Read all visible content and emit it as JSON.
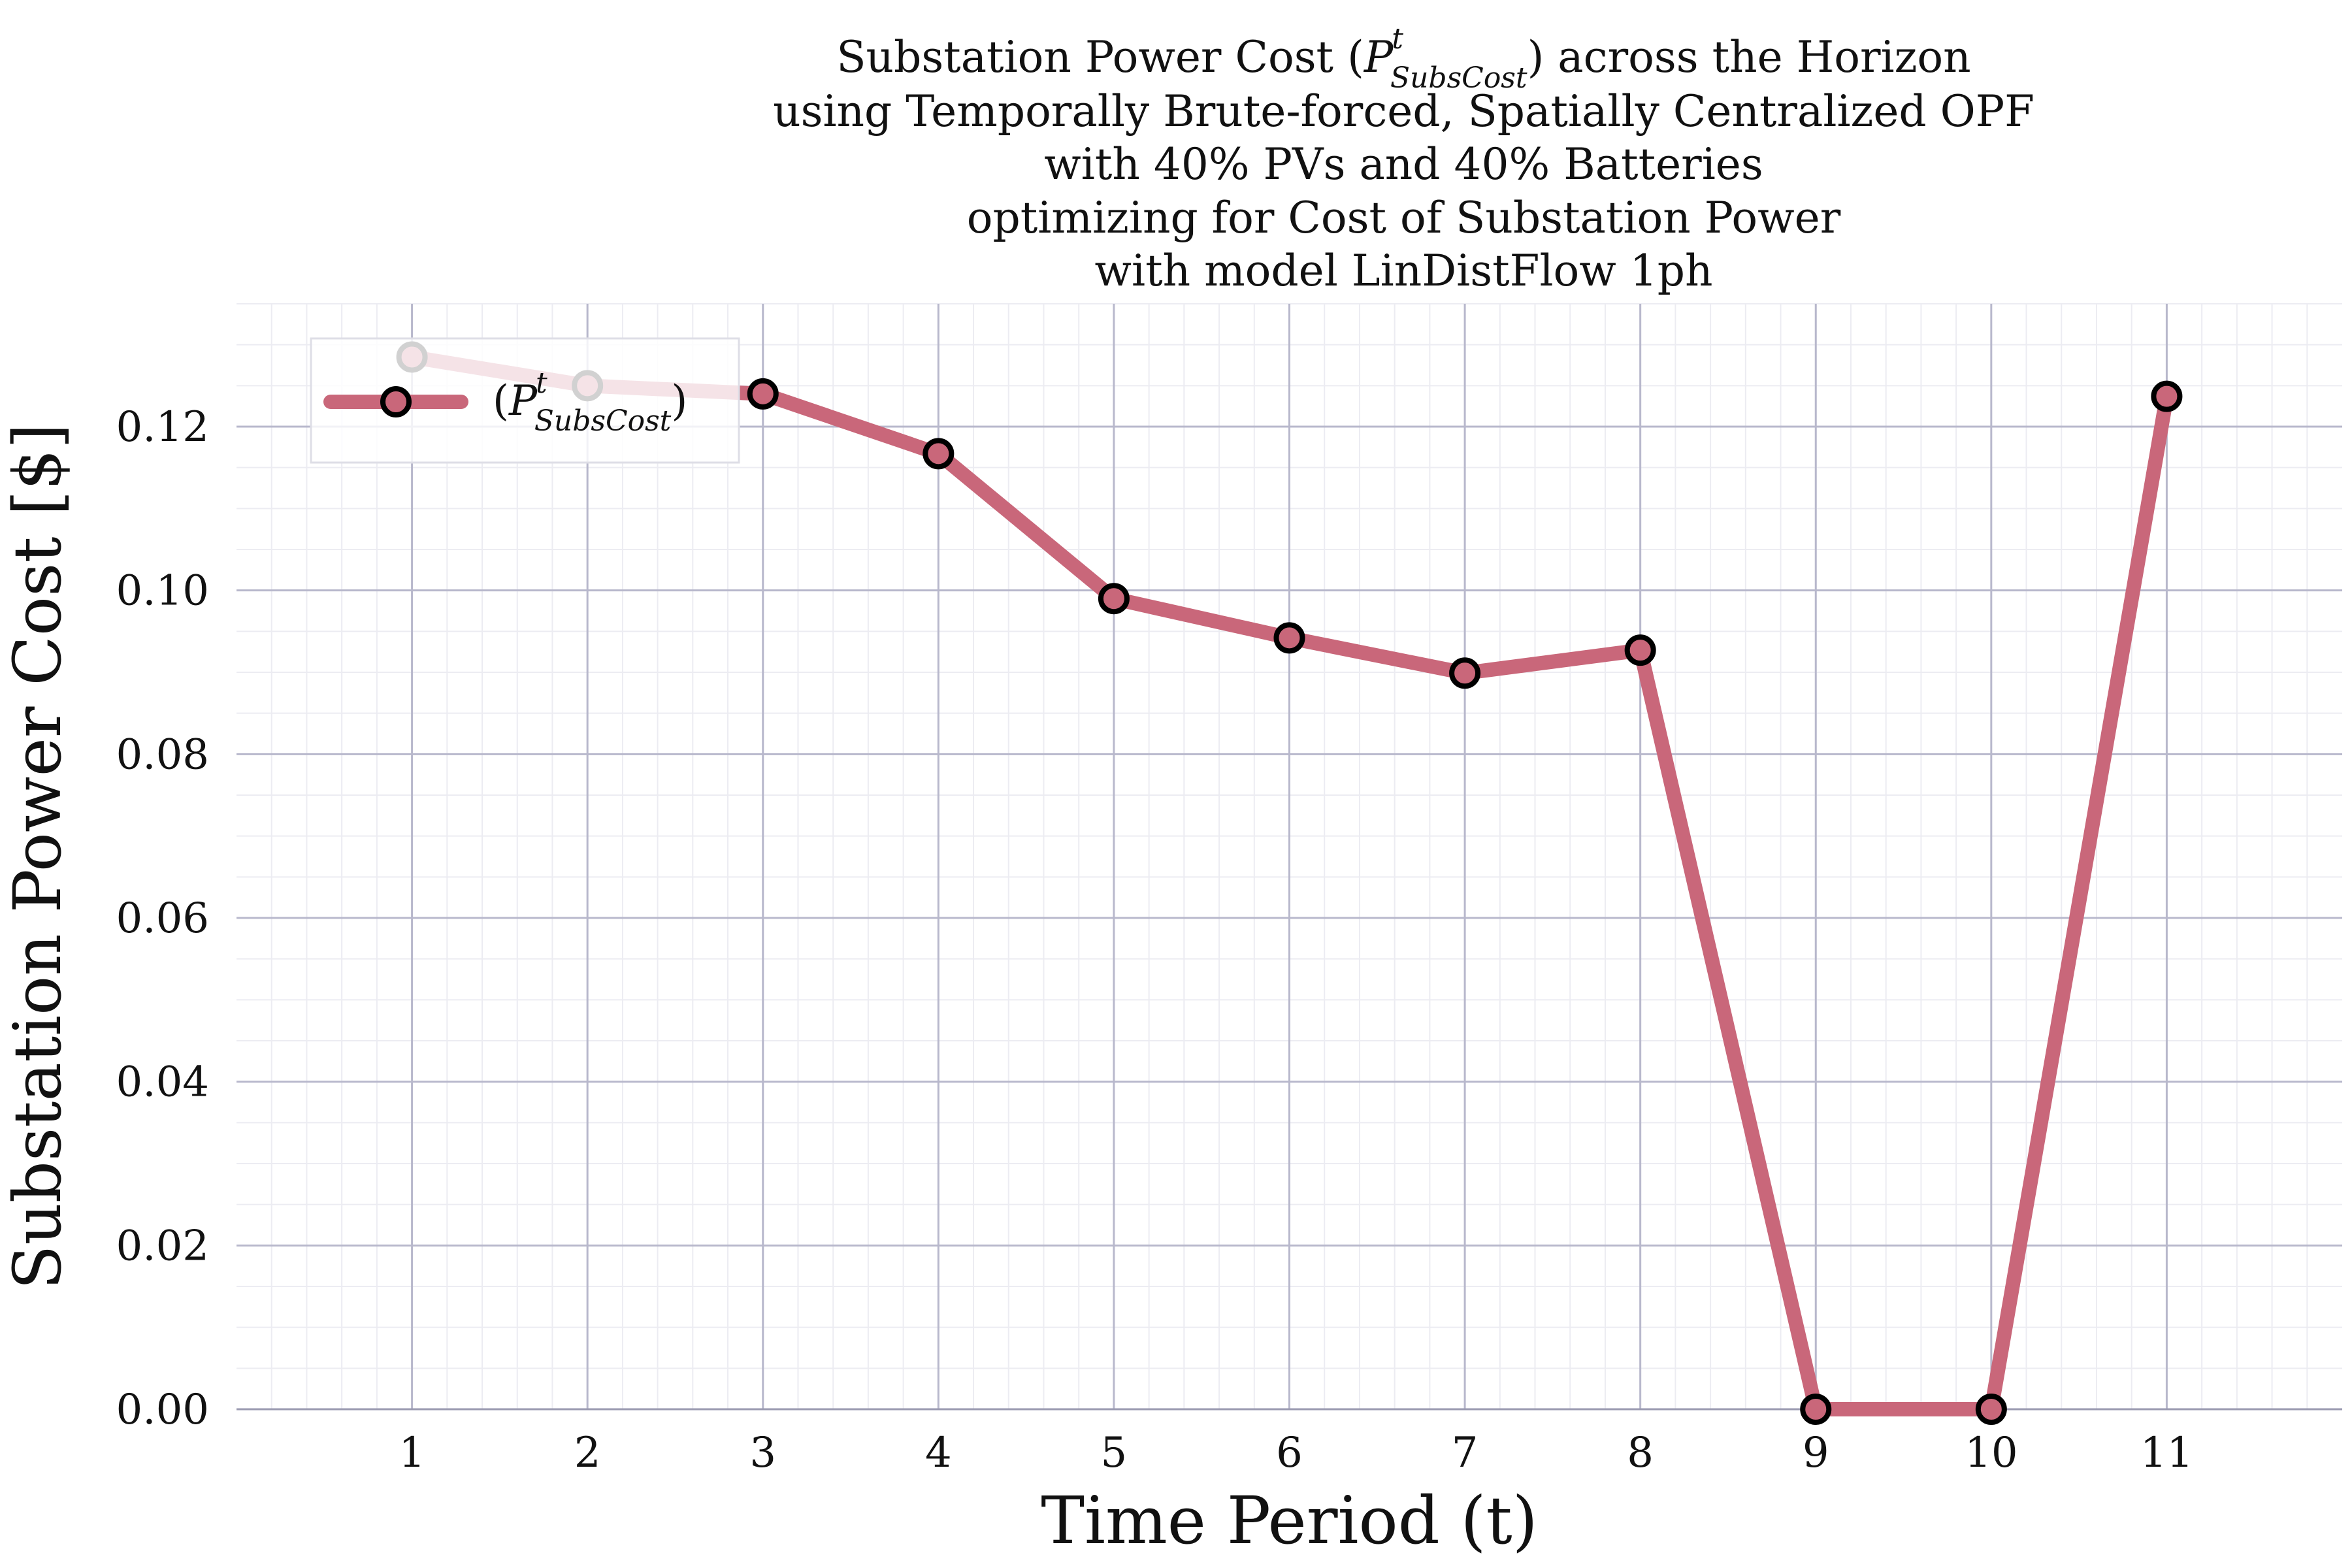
{
  "chart_data": {
    "type": "line",
    "title_lines": [
      [
        "Substation Power Cost (",
        "P",
        "t",
        "SubsCost",
        ") across the Horizon"
      ],
      "using Temporally Brute-forced, Spatially Centralized OPF",
      "with 40% PVs and 40% Batteries",
      "optimizing for Cost of Substation Power",
      "with model LinDistFlow 1ph"
    ],
    "xlabel": "Time Period (t)",
    "ylabel": "Substation Power Cost [$]",
    "x": [
      1,
      2,
      3,
      4,
      5,
      6,
      7,
      8,
      9,
      10,
      11
    ],
    "series": [
      {
        "name": "(P^t_SubsCost)",
        "legend_parts": [
          "(",
          "P",
          "t",
          "SubsCost",
          ")"
        ],
        "color": "#c9677a",
        "values": [
          0.1285,
          0.125,
          0.124,
          0.1167,
          0.099,
          0.0942,
          0.0899,
          0.0927,
          0.0,
          0.0,
          0.1237
        ]
      }
    ],
    "xticks": [
      "1",
      "2",
      "3",
      "4",
      "5",
      "6",
      "7",
      "8",
      "9",
      "10",
      "11"
    ],
    "yticks": [
      "0.00",
      "0.02",
      "0.04",
      "0.06",
      "0.08",
      "0.10",
      "0.12"
    ],
    "xlim": [
      0,
      12
    ],
    "ylim": [
      0,
      0.135
    ],
    "grid": true,
    "minor_grid": true,
    "legend_position": "top-left",
    "colors": {
      "line": "#c9677a",
      "marker_edge": "#000000",
      "major_grid": "#b8b8cc",
      "minor_grid": "#ececf2",
      "text": "#111111"
    }
  }
}
